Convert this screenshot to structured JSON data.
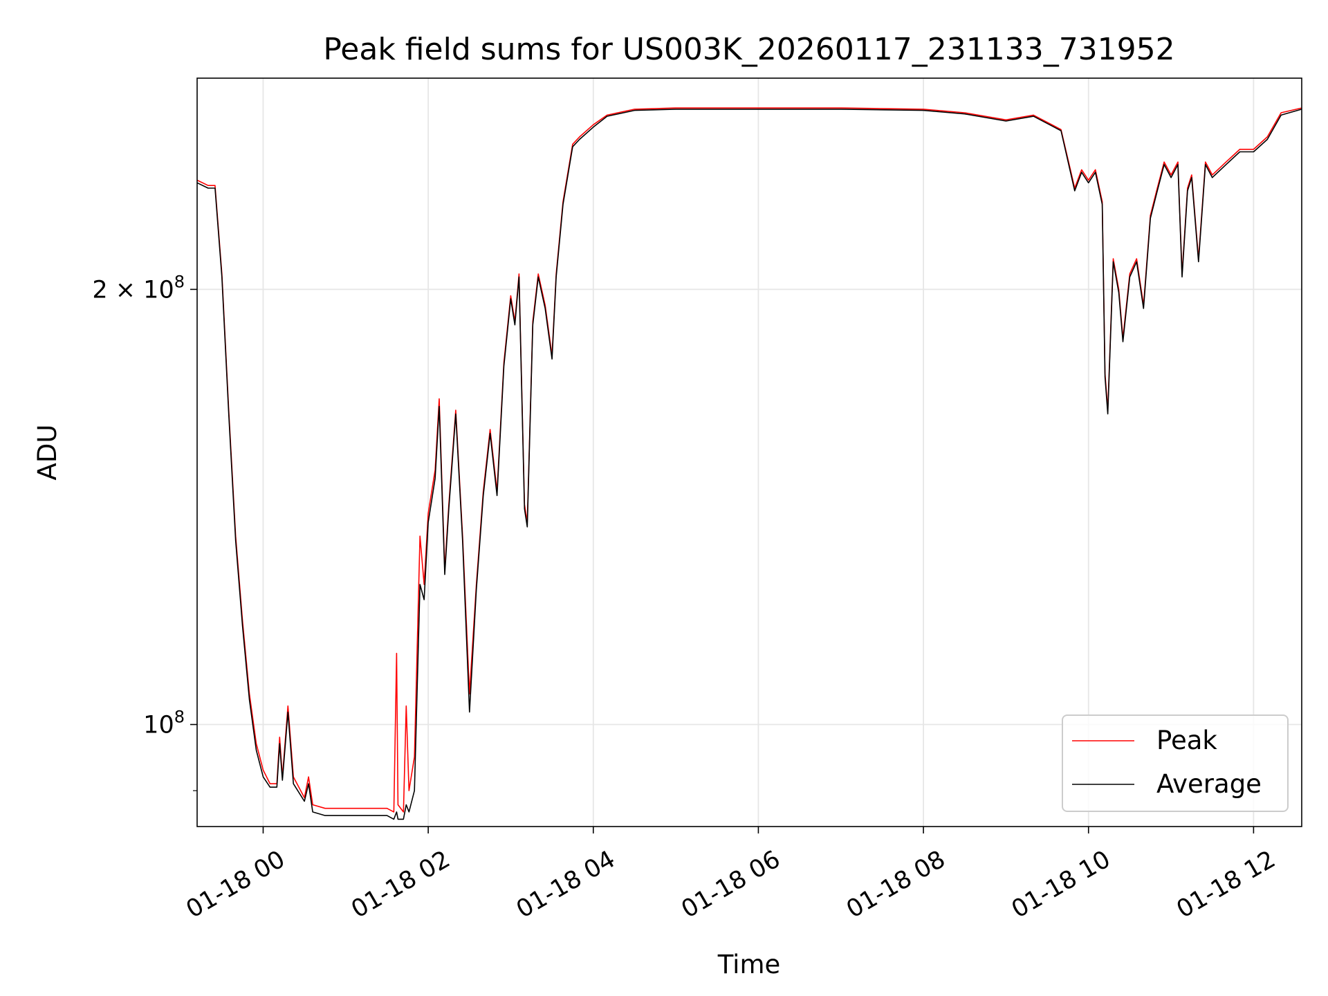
{
  "chart_data": {
    "type": "line",
    "title": "Peak field sums for US003K_20260117_231133_731952",
    "xlabel": "Time",
    "ylabel": "ADU",
    "y_scale": "log",
    "ylim": [
      85000000,
      280000000
    ],
    "xlim": [
      "2026-01-17 23:12",
      "2026-01-18 12:35"
    ],
    "grid": true,
    "legend_position": "lower-right",
    "x_ticks": [
      {
        "x": "2026-01-18 00:00",
        "label": "01-18 00"
      },
      {
        "x": "2026-01-18 02:00",
        "label": "01-18 02"
      },
      {
        "x": "2026-01-18 04:00",
        "label": "01-18 04"
      },
      {
        "x": "2026-01-18 06:00",
        "label": "01-18 06"
      },
      {
        "x": "2026-01-18 08:00",
        "label": "01-18 08"
      },
      {
        "x": "2026-01-18 10:00",
        "label": "01-18 10"
      },
      {
        "x": "2026-01-18 12:00",
        "label": "01-18 12"
      }
    ],
    "y_ticks": [
      {
        "y": 100000000,
        "base": "10",
        "exp": "8",
        "coef": ""
      },
      {
        "y": 200000000,
        "base": "10",
        "exp": "8",
        "coef": "2 × "
      }
    ],
    "y_minor_ticks": [
      90000000
    ],
    "series": [
      {
        "name": "Peak",
        "color": "#ff0000",
        "points": [
          [
            "2026-01-17 23:12",
            238000000.0
          ],
          [
            "2026-01-17 23:20",
            236000000.0
          ],
          [
            "2026-01-17 23:25",
            236000000.0
          ],
          [
            "2026-01-17 23:30",
            205000000.0
          ],
          [
            "2026-01-17 23:35",
            165000000.0
          ],
          [
            "2026-01-17 23:40",
            135000000.0
          ],
          [
            "2026-01-17 23:45",
            118000000.0
          ],
          [
            "2026-01-17 23:50",
            105000000.0
          ],
          [
            "2026-01-17 23:55",
            97000000.0
          ],
          [
            "2026-01-18 00:00",
            93000000.0
          ],
          [
            "2026-01-18 00:05",
            91000000.0
          ],
          [
            "2026-01-18 00:10",
            91000000.0
          ],
          [
            "2026-01-18 00:12",
            98000000.0
          ],
          [
            "2026-01-18 00:14",
            92000000.0
          ],
          [
            "2026-01-18 00:18",
            103000000.0
          ],
          [
            "2026-01-18 00:22",
            92000000.0
          ],
          [
            "2026-01-18 00:30",
            89000000.0
          ],
          [
            "2026-01-18 00:33",
            92000000.0
          ],
          [
            "2026-01-18 00:36",
            88000000.0
          ],
          [
            "2026-01-18 00:45",
            87500000.0
          ],
          [
            "2026-01-18 01:00",
            87500000.0
          ],
          [
            "2026-01-18 01:15",
            87500000.0
          ],
          [
            "2026-01-18 01:30",
            87500000.0
          ],
          [
            "2026-01-18 01:35",
            87000000.0
          ],
          [
            "2026-01-18 01:37",
            112000000.0
          ],
          [
            "2026-01-18 01:38",
            88000000.0
          ],
          [
            "2026-01-18 01:42",
            87000000.0
          ],
          [
            "2026-01-18 01:44",
            103000000.0
          ],
          [
            "2026-01-18 01:46",
            90000000.0
          ],
          [
            "2026-01-18 01:50",
            95000000.0
          ],
          [
            "2026-01-18 01:54",
            135000000.0
          ],
          [
            "2026-01-18 01:57",
            125000000.0
          ],
          [
            "2026-01-18 02:00",
            140000000.0
          ],
          [
            "2026-01-18 02:05",
            150000000.0
          ],
          [
            "2026-01-18 02:08",
            168000000.0
          ],
          [
            "2026-01-18 02:12",
            128000000.0
          ],
          [
            "2026-01-18 02:15",
            142000000.0
          ],
          [
            "2026-01-18 02:20",
            165000000.0
          ],
          [
            "2026-01-18 02:25",
            135000000.0
          ],
          [
            "2026-01-18 02:30",
            105000000.0
          ],
          [
            "2026-01-18 02:35",
            125000000.0
          ],
          [
            "2026-01-18 02:40",
            145000000.0
          ],
          [
            "2026-01-18 02:45",
            160000000.0
          ],
          [
            "2026-01-18 02:50",
            145000000.0
          ],
          [
            "2026-01-18 02:55",
            178000000.0
          ],
          [
            "2026-01-18 03:00",
            198000000.0
          ],
          [
            "2026-01-18 03:03",
            190000000.0
          ],
          [
            "2026-01-18 03:06",
            205000000.0
          ],
          [
            "2026-01-18 03:10",
            142000000.0
          ],
          [
            "2026-01-18 03:12",
            138000000.0
          ],
          [
            "2026-01-18 03:16",
            190000000.0
          ],
          [
            "2026-01-18 03:20",
            205000000.0
          ],
          [
            "2026-01-18 03:25",
            195000000.0
          ],
          [
            "2026-01-18 03:30",
            180000000.0
          ],
          [
            "2026-01-18 03:33",
            205000000.0
          ],
          [
            "2026-01-18 03:38",
            230000000.0
          ],
          [
            "2026-01-18 03:45",
            252000000.0
          ],
          [
            "2026-01-18 03:50",
            255000000.0
          ],
          [
            "2026-01-18 04:00",
            260000000.0
          ],
          [
            "2026-01-18 04:10",
            264000000.0
          ],
          [
            "2026-01-18 04:30",
            266500000.0
          ],
          [
            "2026-01-18 05:00",
            267000000.0
          ],
          [
            "2026-01-18 06:00",
            267000000.0
          ],
          [
            "2026-01-18 07:00",
            267000000.0
          ],
          [
            "2026-01-18 08:00",
            266500000.0
          ],
          [
            "2026-01-18 08:30",
            265000000.0
          ],
          [
            "2026-01-18 09:00",
            262000000.0
          ],
          [
            "2026-01-18 09:20",
            264000000.0
          ],
          [
            "2026-01-18 09:40",
            258000000.0
          ],
          [
            "2026-01-18 09:50",
            235000000.0
          ],
          [
            "2026-01-18 09:55",
            242000000.0
          ],
          [
            "2026-01-18 10:00",
            238000000.0
          ],
          [
            "2026-01-18 10:05",
            242000000.0
          ],
          [
            "2026-01-18 10:10",
            230000000.0
          ],
          [
            "2026-01-18 10:12",
            175000000.0
          ],
          [
            "2026-01-18 10:14",
            165000000.0
          ],
          [
            "2026-01-18 10:18",
            210000000.0
          ],
          [
            "2026-01-18 10:22",
            200000000.0
          ],
          [
            "2026-01-18 10:25",
            185000000.0
          ],
          [
            "2026-01-18 10:30",
            205000000.0
          ],
          [
            "2026-01-18 10:35",
            210000000.0
          ],
          [
            "2026-01-18 10:40",
            195000000.0
          ],
          [
            "2026-01-18 10:45",
            225000000.0
          ],
          [
            "2026-01-18 10:50",
            235000000.0
          ],
          [
            "2026-01-18 10:55",
            245000000.0
          ],
          [
            "2026-01-18 11:00",
            240000000.0
          ],
          [
            "2026-01-18 11:05",
            245000000.0
          ],
          [
            "2026-01-18 11:08",
            205000000.0
          ],
          [
            "2026-01-18 11:12",
            235000000.0
          ],
          [
            "2026-01-18 11:15",
            240000000.0
          ],
          [
            "2026-01-18 11:20",
            210000000.0
          ],
          [
            "2026-01-18 11:25",
            245000000.0
          ],
          [
            "2026-01-18 11:30",
            240000000.0
          ],
          [
            "2026-01-18 11:40",
            245000000.0
          ],
          [
            "2026-01-18 11:50",
            250000000.0
          ],
          [
            "2026-01-18 12:00",
            250000000.0
          ],
          [
            "2026-01-18 12:10",
            255000000.0
          ],
          [
            "2026-01-18 12:20",
            265000000.0
          ],
          [
            "2026-01-18 12:35",
            267000000.0
          ]
        ]
      },
      {
        "name": "Average",
        "color": "#000000",
        "points": [
          [
            "2026-01-17 23:12",
            237000000.0
          ],
          [
            "2026-01-17 23:20",
            235000000.0
          ],
          [
            "2026-01-17 23:25",
            235000000.0
          ],
          [
            "2026-01-17 23:30",
            204000000.0
          ],
          [
            "2026-01-17 23:35",
            164000000.0
          ],
          [
            "2026-01-17 23:40",
            134000000.0
          ],
          [
            "2026-01-17 23:45",
            117000000.0
          ],
          [
            "2026-01-17 23:50",
            104000000.0
          ],
          [
            "2026-01-17 23:55",
            96000000.0
          ],
          [
            "2026-01-18 00:00",
            92000000.0
          ],
          [
            "2026-01-18 00:05",
            90500000.0
          ],
          [
            "2026-01-18 00:10",
            90500000.0
          ],
          [
            "2026-01-18 00:12",
            97000000.0
          ],
          [
            "2026-01-18 00:14",
            91500000.0
          ],
          [
            "2026-01-18 00:18",
            102000000.0
          ],
          [
            "2026-01-18 00:22",
            91000000.0
          ],
          [
            "2026-01-18 00:30",
            88500000.0
          ],
          [
            "2026-01-18 00:33",
            91000000.0
          ],
          [
            "2026-01-18 00:36",
            87000000.0
          ],
          [
            "2026-01-18 00:45",
            86500000.0
          ],
          [
            "2026-01-18 01:00",
            86500000.0
          ],
          [
            "2026-01-18 01:15",
            86500000.0
          ],
          [
            "2026-01-18 01:30",
            86500000.0
          ],
          [
            "2026-01-18 01:35",
            86000000.0
          ],
          [
            "2026-01-18 01:37",
            87000000.0
          ],
          [
            "2026-01-18 01:38",
            86000000.0
          ],
          [
            "2026-01-18 01:42",
            86000000.0
          ],
          [
            "2026-01-18 01:44",
            88000000.0
          ],
          [
            "2026-01-18 01:46",
            87000000.0
          ],
          [
            "2026-01-18 01:50",
            90000000.0
          ],
          [
            "2026-01-18 01:54",
            125000000.0
          ],
          [
            "2026-01-18 01:57",
            122000000.0
          ],
          [
            "2026-01-18 02:00",
            138000000.0
          ],
          [
            "2026-01-18 02:05",
            148000000.0
          ],
          [
            "2026-01-18 02:08",
            166000000.0
          ],
          [
            "2026-01-18 02:12",
            127000000.0
          ],
          [
            "2026-01-18 02:15",
            141000000.0
          ],
          [
            "2026-01-18 02:20",
            164000000.0
          ],
          [
            "2026-01-18 02:25",
            134000000.0
          ],
          [
            "2026-01-18 02:30",
            102000000.0
          ],
          [
            "2026-01-18 02:35",
            124000000.0
          ],
          [
            "2026-01-18 02:40",
            144000000.0
          ],
          [
            "2026-01-18 02:45",
            159000000.0
          ],
          [
            "2026-01-18 02:50",
            144000000.0
          ],
          [
            "2026-01-18 02:55",
            177000000.0
          ],
          [
            "2026-01-18 03:00",
            197000000.0
          ],
          [
            "2026-01-18 03:03",
            189000000.0
          ],
          [
            "2026-01-18 03:06",
            204000000.0
          ],
          [
            "2026-01-18 03:10",
            141000000.0
          ],
          [
            "2026-01-18 03:12",
            137000000.0
          ],
          [
            "2026-01-18 03:16",
            189000000.0
          ],
          [
            "2026-01-18 03:20",
            204000000.0
          ],
          [
            "2026-01-18 03:25",
            194000000.0
          ],
          [
            "2026-01-18 03:30",
            179000000.0
          ],
          [
            "2026-01-18 03:33",
            204000000.0
          ],
          [
            "2026-01-18 03:38",
            229000000.0
          ],
          [
            "2026-01-18 03:45",
            251000000.0
          ],
          [
            "2026-01-18 03:50",
            254000000.0
          ],
          [
            "2026-01-18 04:00",
            259000000.0
          ],
          [
            "2026-01-18 04:10",
            263500000.0
          ],
          [
            "2026-01-18 04:30",
            266000000.0
          ],
          [
            "2026-01-18 05:00",
            266500000.0
          ],
          [
            "2026-01-18 06:00",
            266500000.0
          ],
          [
            "2026-01-18 07:00",
            266500000.0
          ],
          [
            "2026-01-18 08:00",
            266000000.0
          ],
          [
            "2026-01-18 08:30",
            264500000.0
          ],
          [
            "2026-01-18 09:00",
            261500000.0
          ],
          [
            "2026-01-18 09:20",
            263500000.0
          ],
          [
            "2026-01-18 09:40",
            257500000.0
          ],
          [
            "2026-01-18 09:50",
            234000000.0
          ],
          [
            "2026-01-18 09:55",
            241000000.0
          ],
          [
            "2026-01-18 10:00",
            237000000.0
          ],
          [
            "2026-01-18 10:05",
            241000000.0
          ],
          [
            "2026-01-18 10:10",
            229000000.0
          ],
          [
            "2026-01-18 10:12",
            174000000.0
          ],
          [
            "2026-01-18 10:14",
            164000000.0
          ],
          [
            "2026-01-18 10:18",
            209000000.0
          ],
          [
            "2026-01-18 10:22",
            199000000.0
          ],
          [
            "2026-01-18 10:25",
            184000000.0
          ],
          [
            "2026-01-18 10:30",
            204000000.0
          ],
          [
            "2026-01-18 10:35",
            209000000.0
          ],
          [
            "2026-01-18 10:40",
            194000000.0
          ],
          [
            "2026-01-18 10:45",
            224000000.0
          ],
          [
            "2026-01-18 10:50",
            234000000.0
          ],
          [
            "2026-01-18 10:55",
            244000000.0
          ],
          [
            "2026-01-18 11:00",
            239000000.0
          ],
          [
            "2026-01-18 11:05",
            244000000.0
          ],
          [
            "2026-01-18 11:08",
            204000000.0
          ],
          [
            "2026-01-18 11:12",
            234000000.0
          ],
          [
            "2026-01-18 11:15",
            239000000.0
          ],
          [
            "2026-01-18 11:20",
            209000000.0
          ],
          [
            "2026-01-18 11:25",
            244000000.0
          ],
          [
            "2026-01-18 11:30",
            239000000.0
          ],
          [
            "2026-01-18 11:40",
            244000000.0
          ],
          [
            "2026-01-18 11:50",
            249000000.0
          ],
          [
            "2026-01-18 12:00",
            249000000.0
          ],
          [
            "2026-01-18 12:10",
            254000000.0
          ],
          [
            "2026-01-18 12:20",
            264000000.0
          ],
          [
            "2026-01-18 12:35",
            266500000.0
          ]
        ]
      }
    ]
  }
}
